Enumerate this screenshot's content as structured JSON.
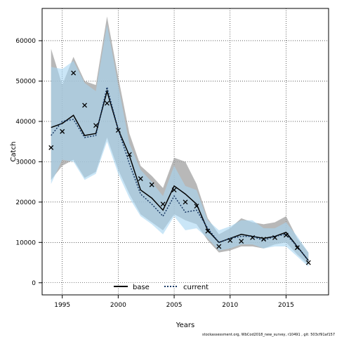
{
  "chart_data": {
    "type": "line",
    "xlabel": "Years",
    "ylabel": "Catch",
    "xlim": [
      1993.2,
      2018.8
    ],
    "ylim": [
      -3000,
      68000
    ],
    "x_ticks": [
      1995,
      2000,
      2005,
      2010,
      2015
    ],
    "y_ticks": [
      0,
      10000,
      20000,
      30000,
      40000,
      50000,
      60000
    ],
    "x_tick_labels": [
      "1995",
      "2000",
      "2005",
      "2010",
      "2015"
    ],
    "y_tick_labels": [
      "0",
      "10000",
      "20000",
      "30000",
      "40000",
      "50000",
      "60000"
    ],
    "grid": true,
    "legend_position": "bottom-center",
    "series": [
      {
        "name": "base",
        "line_style": "solid",
        "color": "#000000",
        "band_color": "#a0a0a0",
        "x": [
          1994,
          1995,
          1996,
          1997,
          1998,
          1999,
          2000,
          2001,
          2002,
          2003,
          2004,
          2005,
          2006,
          2007,
          2008,
          2009,
          2010,
          2011,
          2012,
          2013,
          2014,
          2015,
          2016,
          2017
        ],
        "y": [
          38500,
          39500,
          41500,
          36500,
          37000,
          47500,
          38000,
          31500,
          23000,
          21000,
          18000,
          24000,
          22000,
          19500,
          13000,
          10000,
          11000,
          12000,
          11500,
          11000,
          11500,
          12500,
          9000,
          5500
        ],
        "lower": [
          25500,
          29000,
          30500,
          26000,
          27500,
          36000,
          28000,
          22000,
          17000,
          15000,
          13000,
          17000,
          15500,
          14500,
          10500,
          7500,
          8000,
          9000,
          9000,
          8500,
          9500,
          10000,
          7000,
          4500
        ],
        "upper": [
          58000,
          49000,
          56000,
          50000,
          49000,
          66000,
          51000,
          37000,
          29000,
          26500,
          23500,
          31000,
          30000,
          24500,
          16000,
          12000,
          13500,
          16000,
          15000,
          14500,
          15000,
          16500,
          11000,
          7500
        ]
      },
      {
        "name": "current",
        "line_style": "dotted",
        "color": "#1a3a66",
        "band_color": "#a6d6f2",
        "x": [
          1994,
          1995,
          1996,
          1997,
          1998,
          1999,
          2000,
          2001,
          2002,
          2003,
          2004,
          2005,
          2006,
          2007,
          2008,
          2009,
          2010,
          2011,
          2012,
          2013,
          2014,
          2015,
          2016,
          2017
        ],
        "y": [
          36500,
          40000,
          40500,
          36000,
          36500,
          48500,
          38000,
          29500,
          22000,
          19500,
          16500,
          21500,
          17500,
          18000,
          13500,
          10000,
          11000,
          11500,
          11500,
          10500,
          11500,
          12000,
          9000,
          5500
        ],
        "lower": [
          24500,
          30500,
          30000,
          25500,
          27000,
          35000,
          27000,
          21000,
          16500,
          14500,
          12000,
          16500,
          13000,
          13500,
          11000,
          8000,
          8500,
          9500,
          9500,
          8500,
          9000,
          9000,
          6500,
          4000
        ],
        "upper": [
          53500,
          53000,
          55000,
          49500,
          47500,
          64000,
          49000,
          34500,
          28000,
          25000,
          21500,
          29000,
          24000,
          23000,
          15500,
          13000,
          14000,
          15500,
          15500,
          13500,
          13500,
          15000,
          11500,
          7500
        ]
      }
    ],
    "observed": {
      "marker": "x",
      "x": [
        1994,
        1995,
        1996,
        1997,
        1998,
        1999,
        2000,
        2001,
        2002,
        2003,
        2004,
        2005,
        2006,
        2007,
        2008,
        2009,
        2010,
        2011,
        2012,
        2013,
        2014,
        2015,
        2016,
        2017
      ],
      "y": [
        33500,
        37500,
        52000,
        44000,
        39000,
        44500,
        37800,
        31800,
        25800,
        24300,
        19500,
        23000,
        20000,
        19000,
        12800,
        9000,
        10500,
        10300,
        11200,
        10800,
        11200,
        11800,
        8700,
        5000
      ]
    },
    "footer": "stockassessment.org, WbCod2018_new_survey, r10491 , git: 503cf91af157"
  }
}
